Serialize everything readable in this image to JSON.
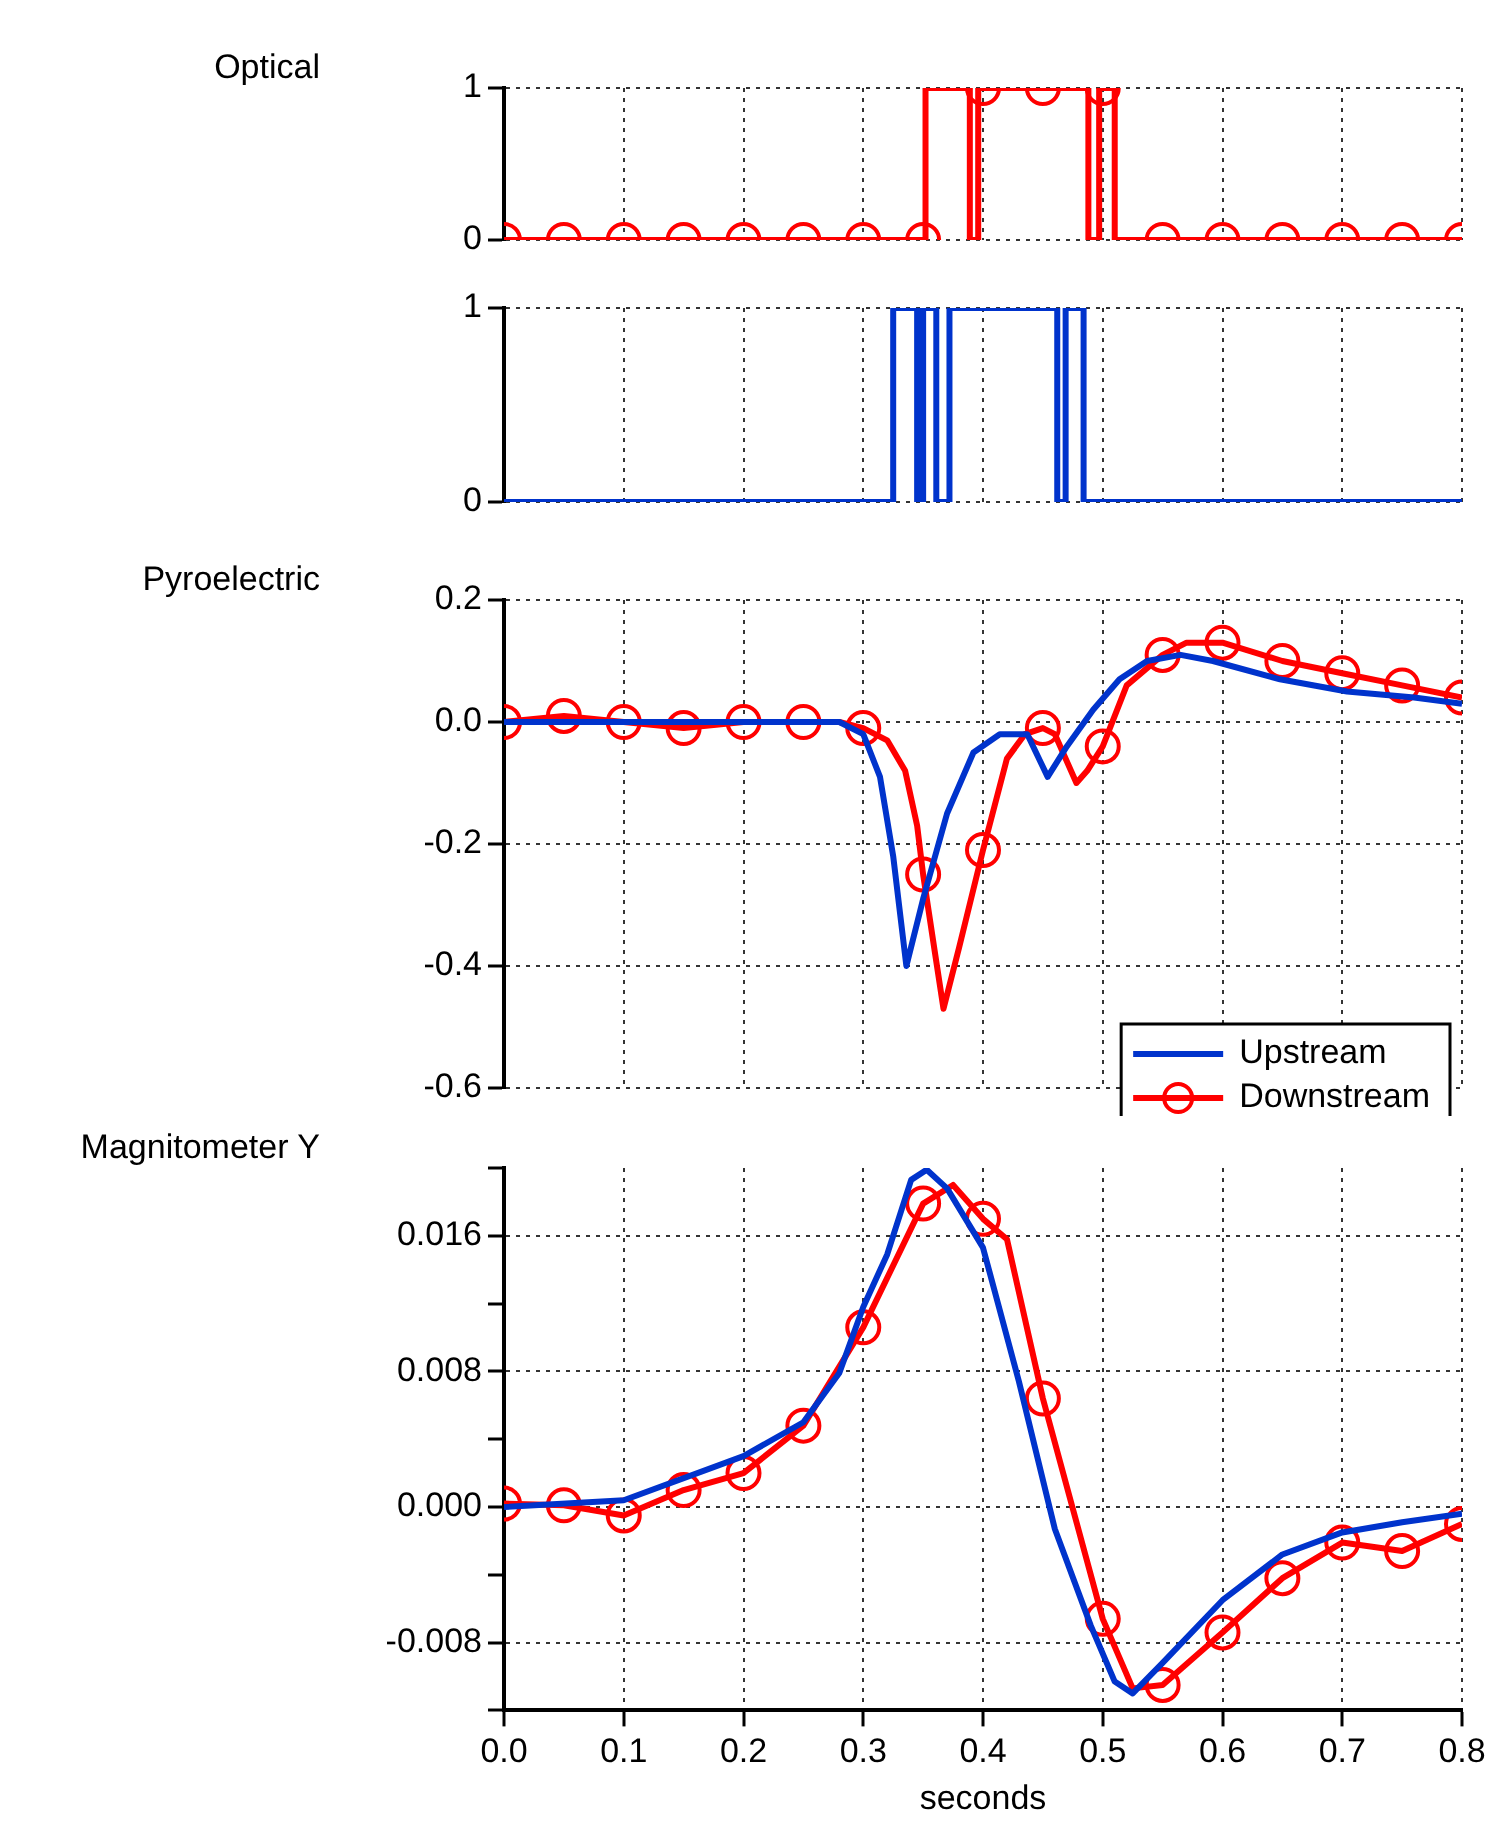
{
  "chart_data": [
    {
      "type": "step",
      "ylabel": "Optical",
      "xlim": [
        0,
        0.8
      ],
      "ylim": [
        0,
        1
      ],
      "xticks": [
        0.1,
        0.2,
        0.3,
        0.4,
        0.5,
        0.6,
        0.7,
        0.8
      ],
      "yticks": [
        0,
        1
      ],
      "grid": true,
      "tick_labels": "y",
      "series": [
        {
          "color": "#ff0000",
          "marker": "circle",
          "x": [
            0,
            0.05,
            0.1,
            0.15,
            0.2,
            0.25,
            0.3,
            0.35,
            0.352,
            0.389,
            0.396,
            0.4,
            0.45,
            0.488,
            0.497,
            0.5,
            0.51,
            0.55,
            0.6,
            0.65,
            0.7,
            0.75,
            0.8
          ],
          "values": [
            0,
            0,
            0,
            0,
            0,
            0,
            0,
            0,
            1,
            0,
            1,
            1,
            1,
            0,
            1,
            1,
            0,
            0,
            0,
            0,
            0,
            0,
            0
          ]
        }
      ]
    },
    {
      "type": "step",
      "xlim": [
        0,
        0.8
      ],
      "ylim": [
        0,
        1
      ],
      "xticks": [
        0.1,
        0.2,
        0.3,
        0.4,
        0.5,
        0.6,
        0.7,
        0.8
      ],
      "yticks": [
        0,
        1
      ],
      "grid": true,
      "tick_labels": "y",
      "series": [
        {
          "color": "#0033cc",
          "marker": "none",
          "x": [
            0,
            0.325,
            0.345,
            0.35,
            0.361,
            0.372,
            0.462,
            0.469,
            0.484,
            0.8
          ],
          "values": [
            0,
            1,
            0,
            1,
            0,
            1,
            0,
            1,
            0,
            0
          ]
        }
      ]
    },
    {
      "type": "line",
      "ylabel": "Pyroelectric",
      "xlim": [
        0,
        0.8
      ],
      "ylim": [
        -0.6,
        0.2
      ],
      "xticks": [
        0.1,
        0.2,
        0.3,
        0.4,
        0.5,
        0.6,
        0.7,
        0.8
      ],
      "yticks": [
        0.2,
        {
          "value": 0,
          "label": "0.0"
        },
        -0.2,
        -0.4,
        -0.6
      ],
      "grid": true,
      "tick_labels": "y",
      "legend": "bottom right",
      "series": [
        {
          "name": "Upstream",
          "color": "#0033cc",
          "marker": "none",
          "x": [
            0,
            0.1,
            0.2,
            0.28,
            0.3,
            0.314,
            0.325,
            0.336,
            0.35,
            0.37,
            0.392,
            0.414,
            0.437,
            0.454,
            0.47,
            0.492,
            0.514,
            0.537,
            0.565,
            0.592,
            0.648,
            0.704,
            0.76,
            0.8
          ],
          "values": [
            0,
            0,
            0,
            0,
            -0.02,
            -0.09,
            -0.22,
            -0.4,
            -0.29,
            -0.15,
            -0.05,
            -0.02,
            -0.02,
            -0.09,
            -0.04,
            0.02,
            0.07,
            0.1,
            0.11,
            0.1,
            0.07,
            0.05,
            0.04,
            0.03
          ]
        },
        {
          "name": "Downstream",
          "color": "#ff0000",
          "marker": "circle",
          "x": [
            0,
            0.05,
            0.1,
            0.15,
            0.2,
            0.25,
            0.28,
            0.3,
            0.32,
            0.335,
            0.345,
            0.35,
            0.36,
            0.367,
            0.38,
            0.4,
            0.42,
            0.435,
            0.45,
            0.46,
            0.478,
            0.487,
            0.5,
            0.52,
            0.55,
            0.57,
            0.6,
            0.65,
            0.7,
            0.75,
            0.8
          ],
          "values": [
            0,
            0.01,
            0,
            -0.01,
            0,
            0,
            0,
            -0.01,
            -0.03,
            -0.08,
            -0.17,
            -0.25,
            -0.38,
            -0.47,
            -0.37,
            -0.21,
            -0.06,
            -0.02,
            -0.01,
            -0.02,
            -0.1,
            -0.08,
            -0.04,
            0.06,
            0.11,
            0.13,
            0.13,
            0.1,
            0.08,
            0.06,
            0.04
          ]
        }
      ]
    },
    {
      "type": "line",
      "ylabel": "Magnitometer Y",
      "xlabel": "seconds",
      "xlim": [
        0,
        0.8
      ],
      "ylim": [
        -0.012,
        0.02
      ],
      "xticks": [
        {
          "value": 0,
          "label": "0.0"
        },
        0.1,
        0.2,
        0.3,
        0.4,
        0.5,
        0.6,
        0.7,
        0.8
      ],
      "yticks": [
        {
          "value": 0.02,
          "label": null
        },
        0.016,
        {
          "value": 0.012,
          "label": null
        },
        0.008,
        {
          "value": 0.004,
          "label": null
        },
        {
          "value": 0,
          "label": "0.000"
        },
        {
          "value": -0.004,
          "label": null
        },
        -0.008,
        {
          "value": -0.012,
          "label": null
        }
      ],
      "grid": true,
      "series": [
        {
          "color": "#0033cc",
          "marker": "none",
          "x": [
            0,
            0.1,
            0.2,
            0.25,
            0.28,
            0.3,
            0.32,
            0.34,
            0.353,
            0.37,
            0.4,
            0.43,
            0.46,
            0.49,
            0.51,
            0.525,
            0.55,
            0.6,
            0.65,
            0.7,
            0.75,
            0.8
          ],
          "values": [
            0,
            0.0004,
            0.003,
            0.005,
            0.0079,
            0.0118,
            0.0149,
            0.0193,
            0.0199,
            0.0188,
            0.0153,
            0.0074,
            -0.0013,
            -0.007,
            -0.0103,
            -0.011,
            -0.0092,
            -0.0055,
            -0.0028,
            -0.0015,
            -0.0009,
            -0.0004
          ]
        },
        {
          "color": "#ff0000",
          "marker": "circle",
          "x": [
            0,
            0.05,
            0.1,
            0.15,
            0.2,
            0.25,
            0.3,
            0.35,
            0.375,
            0.4,
            0.42,
            0.45,
            0.5,
            0.525,
            0.55,
            0.6,
            0.65,
            0.7,
            0.75,
            0.8
          ],
          "values": [
            0.0002,
            0.0001,
            -0.0005,
            0.001,
            0.002,
            0.0048,
            0.0106,
            0.0179,
            0.019,
            0.017,
            0.0158,
            0.0064,
            -0.0066,
            -0.0107,
            -0.0105,
            -0.0074,
            -0.0042,
            -0.0021,
            -0.0026,
            -0.001
          ]
        }
      ]
    }
  ]
}
